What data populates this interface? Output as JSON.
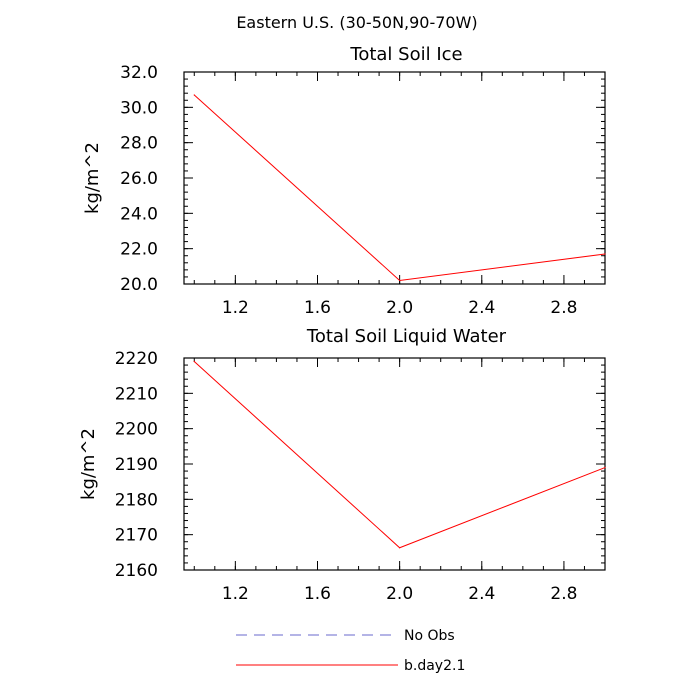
{
  "figure": {
    "title": "Eastern U.S. (30-50N,90-70W)"
  },
  "chart_data": [
    {
      "type": "line",
      "title": "Total Soil Ice",
      "xlabel": "",
      "ylabel": "kg/m^2",
      "xlim": [
        0.95,
        3.0
      ],
      "ylim": [
        20.0,
        32.0
      ],
      "x_ticks": [
        1.2,
        1.6,
        2.0,
        2.4,
        2.8
      ],
      "x_tick_labels": [
        "1.2",
        "1.6",
        "2.0",
        "2.4",
        "2.8"
      ],
      "y_ticks": [
        20,
        22,
        24,
        26,
        28,
        30,
        32
      ],
      "y_tick_labels": [
        "20.0",
        "22.0",
        "24.0",
        "26.0",
        "28.0",
        "30.0",
        "32.0"
      ],
      "series": [
        {
          "name": "b.day2.1",
          "color": "#ff0000",
          "x": [
            1.0,
            2.0,
            3.0
          ],
          "y": [
            30.7,
            20.2,
            21.7
          ]
        }
      ]
    },
    {
      "type": "line",
      "title": "Total Soil Liquid Water",
      "xlabel": "",
      "ylabel": "kg/m^2",
      "xlim": [
        0.95,
        3.0
      ],
      "ylim": [
        2160,
        2220
      ],
      "x_ticks": [
        1.2,
        1.6,
        2.0,
        2.4,
        2.8
      ],
      "x_tick_labels": [
        "1.2",
        "1.6",
        "2.0",
        "2.4",
        "2.8"
      ],
      "y_ticks": [
        2160,
        2170,
        2180,
        2190,
        2200,
        2210,
        2220
      ],
      "y_tick_labels": [
        "2160",
        "2170",
        "2180",
        "2190",
        "2200",
        "2210",
        "2220"
      ],
      "series": [
        {
          "name": "b.day2.1",
          "color": "#ff0000",
          "x": [
            1.0,
            2.0,
            3.0
          ],
          "y": [
            2219,
            2166.3,
            2189
          ]
        }
      ]
    }
  ],
  "legend": {
    "items": [
      {
        "label": "No Obs",
        "color": "#6a6acd",
        "style": "dashed"
      },
      {
        "label": "b.day2.1",
        "color": "#ff0000",
        "style": "solid"
      }
    ]
  }
}
